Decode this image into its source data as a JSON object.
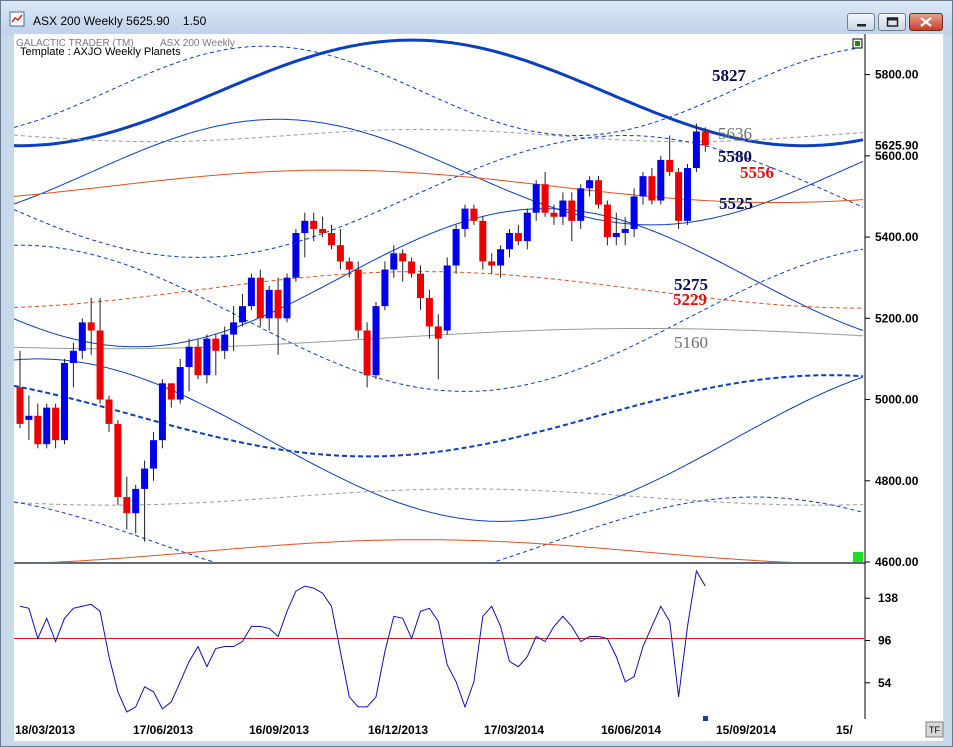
{
  "window": {
    "title": "ASX 200 Weekly 5625.90",
    "title_extra": "1.50",
    "software_label": "GALACTIC TRADER (TM)",
    "chart_name": "ASX 200 Weekly",
    "template_label": "Template : AXJO Weekly Planets",
    "corner_badge": "TF"
  },
  "chart_data": [
    {
      "type": "candlestick",
      "price_axis_labels": [
        "5800.00",
        "5600.00",
        "5400.00",
        "5200.00",
        "5000.00",
        "4800.00",
        "4600.00"
      ],
      "ylim": [
        4600,
        5900
      ],
      "current_price_label": "5625.90",
      "date_labels": [
        "18/03/2013",
        "17/06/2013",
        "16/09/2013",
        "16/12/2013",
        "17/03/2014",
        "16/06/2014",
        "15/09/2014",
        "15/"
      ],
      "level_annotations": [
        {
          "text": "5827",
          "value": 5827,
          "color": "#0a0a55"
        },
        {
          "text": "5636",
          "value": 5636,
          "color": "#707070"
        },
        {
          "text": "5580",
          "value": 5580,
          "color": "#0a0a55"
        },
        {
          "text": "5556",
          "value": 5556,
          "color": "#e01010"
        },
        {
          "text": "5525",
          "value": 5525,
          "color": "#0a0a55"
        },
        {
          "text": "5275",
          "value": 5275,
          "color": "#0a0a55"
        },
        {
          "text": "5229",
          "value": 5229,
          "color": "#e01010"
        },
        {
          "text": "5160",
          "value": 5160,
          "color": "#707070"
        }
      ],
      "candles": [
        [
          5030,
          5120,
          4930,
          4940
        ],
        [
          4950,
          5010,
          4900,
          4960
        ],
        [
          4960,
          4990,
          4880,
          4890
        ],
        [
          4890,
          4990,
          4880,
          4980
        ],
        [
          4980,
          4990,
          4880,
          4900
        ],
        [
          4900,
          5100,
          4890,
          5090
        ],
        [
          5090,
          5140,
          5030,
          5120
        ],
        [
          5120,
          5200,
          5100,
          5190
        ],
        [
          5190,
          5250,
          5110,
          5170
        ],
        [
          5170,
          5250,
          4990,
          5000
        ],
        [
          5000,
          5010,
          4920,
          4940
        ],
        [
          4940,
          4950,
          4740,
          4760
        ],
        [
          4760,
          4810,
          4680,
          4720
        ],
        [
          4720,
          4790,
          4670,
          4780
        ],
        [
          4780,
          4850,
          4650,
          4830
        ],
        [
          4830,
          4920,
          4800,
          4900
        ],
        [
          4900,
          5050,
          4880,
          5040
        ],
        [
          5040,
          5040,
          4980,
          5000
        ],
        [
          5000,
          5100,
          4990,
          5080
        ],
        [
          5080,
          5150,
          5020,
          5130
        ],
        [
          5130,
          5150,
          5050,
          5060
        ],
        [
          5060,
          5160,
          5040,
          5150
        ],
        [
          5150,
          5160,
          5060,
          5120
        ],
        [
          5120,
          5180,
          5100,
          5160
        ],
        [
          5160,
          5230,
          5120,
          5190
        ],
        [
          5190,
          5260,
          5180,
          5230
        ],
        [
          5230,
          5310,
          5220,
          5300
        ],
        [
          5300,
          5320,
          5180,
          5200
        ],
        [
          5200,
          5280,
          5170,
          5270
        ],
        [
          5270,
          5300,
          5110,
          5200
        ],
        [
          5200,
          5310,
          5190,
          5300
        ],
        [
          5300,
          5420,
          5290,
          5410
        ],
        [
          5410,
          5460,
          5350,
          5440
        ],
        [
          5440,
          5460,
          5390,
          5420
        ],
        [
          5420,
          5450,
          5400,
          5410
        ],
        [
          5410,
          5430,
          5370,
          5380
        ],
        [
          5380,
          5420,
          5320,
          5340
        ],
        [
          5340,
          5350,
          5300,
          5320
        ],
        [
          5320,
          5340,
          5150,
          5170
        ],
        [
          5170,
          5190,
          5030,
          5060
        ],
        [
          5060,
          5240,
          5050,
          5230
        ],
        [
          5230,
          5340,
          5220,
          5320
        ],
        [
          5320,
          5380,
          5300,
          5360
        ],
        [
          5360,
          5370,
          5290,
          5340
        ],
        [
          5340,
          5350,
          5300,
          5310
        ],
        [
          5310,
          5330,
          5220,
          5250
        ],
        [
          5250,
          5270,
          5150,
          5180
        ],
        [
          5180,
          5210,
          5050,
          5150
        ],
        [
          5170,
          5350,
          5160,
          5330
        ],
        [
          5330,
          5430,
          5310,
          5420
        ],
        [
          5420,
          5480,
          5400,
          5470
        ],
        [
          5470,
          5480,
          5430,
          5440
        ],
        [
          5440,
          5450,
          5320,
          5340
        ],
        [
          5340,
          5360,
          5310,
          5330
        ],
        [
          5330,
          5380,
          5300,
          5370
        ],
        [
          5370,
          5420,
          5350,
          5410
        ],
        [
          5410,
          5430,
          5380,
          5390
        ],
        [
          5390,
          5470,
          5370,
          5460
        ],
        [
          5460,
          5540,
          5440,
          5530
        ],
        [
          5530,
          5560,
          5450,
          5460
        ],
        [
          5460,
          5480,
          5430,
          5450
        ],
        [
          5450,
          5510,
          5430,
          5490
        ],
        [
          5490,
          5510,
          5390,
          5440
        ],
        [
          5440,
          5530,
          5420,
          5520
        ],
        [
          5520,
          5550,
          5500,
          5540
        ],
        [
          5540,
          5550,
          5470,
          5480
        ],
        [
          5480,
          5490,
          5380,
          5400
        ],
        [
          5400,
          5460,
          5380,
          5410
        ],
        [
          5410,
          5450,
          5380,
          5420
        ],
        [
          5420,
          5520,
          5400,
          5500
        ],
        [
          5500,
          5560,
          5480,
          5550
        ],
        [
          5550,
          5570,
          5480,
          5490
        ],
        [
          5490,
          5600,
          5480,
          5590
        ],
        [
          5590,
          5650,
          5550,
          5560
        ],
        [
          5560,
          5570,
          5420,
          5440
        ],
        [
          5440,
          5580,
          5430,
          5570
        ],
        [
          5570,
          5680,
          5560,
          5660
        ],
        [
          5660,
          5670,
          5610,
          5625.9
        ]
      ],
      "oscillator": {
        "axis_labels": [
          "138",
          "96",
          "54"
        ],
        "ylim": [
          20,
          170
        ],
        "reference_level": 98,
        "values": [
          130,
          128,
          98,
          118,
          95,
          118,
          128,
          130,
          132,
          125,
          80,
          45,
          25,
          30,
          50,
          45,
          28,
          35,
          55,
          75,
          90,
          70,
          88,
          90,
          90,
          95,
          110,
          110,
          108,
          100,
          125,
          145,
          150,
          148,
          143,
          130,
          85,
          40,
          30,
          30,
          40,
          85,
          120,
          118,
          98,
          125,
          128,
          115,
          72,
          55,
          30,
          55,
          120,
          130,
          110,
          75,
          70,
          80,
          100,
          95,
          110,
          120,
          110,
          95,
          100,
          100,
          98,
          80,
          55,
          60,
          90,
          110,
          130,
          115,
          40,
          110,
          165,
          150
        ]
      },
      "overlay_curves": [
        {
          "name": "",
          "color": "#0a3fbf",
          "dashed": false,
          "width": 3,
          "base": 5755,
          "amp": 130,
          "period": 88,
          "phase": 22
        },
        {
          "name": "",
          "color": "#0a3fbf",
          "dashed": true,
          "width": 1,
          "base": 5760,
          "amp": 110,
          "period": 70,
          "phase": 10
        },
        {
          "name": "",
          "color": "#9a9a9a",
          "dashed": true,
          "width": 1,
          "base": 5650,
          "amp": 15,
          "period": 60,
          "phase": 30
        },
        {
          "name": "",
          "color": "#0a3fbf",
          "dashed": false,
          "width": 1,
          "base": 5560,
          "amp": 130,
          "period": 84,
          "phase": 8
        },
        {
          "name": "",
          "color": "#e05020",
          "dashed": false,
          "width": 1,
          "base": 5525,
          "amp": 40,
          "period": 100,
          "phase": 10
        },
        {
          "name": "",
          "color": "#0a3fbf",
          "dashed": true,
          "width": 1,
          "base": 5500,
          "amp": 150,
          "period": 96,
          "phase": 44
        },
        {
          "name": "",
          "color": "#0a3fbf",
          "dashed": false,
          "width": 1,
          "base": 5300,
          "amp": 170,
          "period": 92,
          "phase": 36
        },
        {
          "name": "",
          "color": "#e05020",
          "dashed": true,
          "width": 1,
          "base": 5270,
          "amp": 45,
          "period": 100,
          "phase": 20
        },
        {
          "name": "",
          "color": "#0a3fbf",
          "dashed": true,
          "width": 1,
          "base": 5200,
          "amp": 180,
          "period": 100,
          "phase": 75
        },
        {
          "name": "",
          "color": "#9a9a9a",
          "dashed": false,
          "width": 1,
          "base": 5150,
          "amp": 25,
          "period": 120,
          "phase": 40
        },
        {
          "name": "",
          "color": "#0a3fbf",
          "dashed": true,
          "width": 2,
          "base": 4960,
          "amp": 100,
          "period": 104,
          "phase": 65
        },
        {
          "name": "",
          "color": "#0a3fbf",
          "dashed": false,
          "width": 1,
          "base": 4900,
          "amp": 200,
          "period": 104,
          "phase": 80
        },
        {
          "name": "",
          "color": "#9a9a9a",
          "dashed": true,
          "width": 1,
          "base": 4760,
          "amp": 20,
          "period": 80,
          "phase": 30
        },
        {
          "name": "",
          "color": "#0a3fbf",
          "dashed": true,
          "width": 1,
          "base": 4650,
          "amp": 110,
          "period": 90,
          "phase": 60
        },
        {
          "name": "",
          "color": "#e05020",
          "dashed": false,
          "width": 1,
          "base": 4625,
          "amp": 30,
          "period": 100,
          "phase": 20
        }
      ]
    }
  ]
}
